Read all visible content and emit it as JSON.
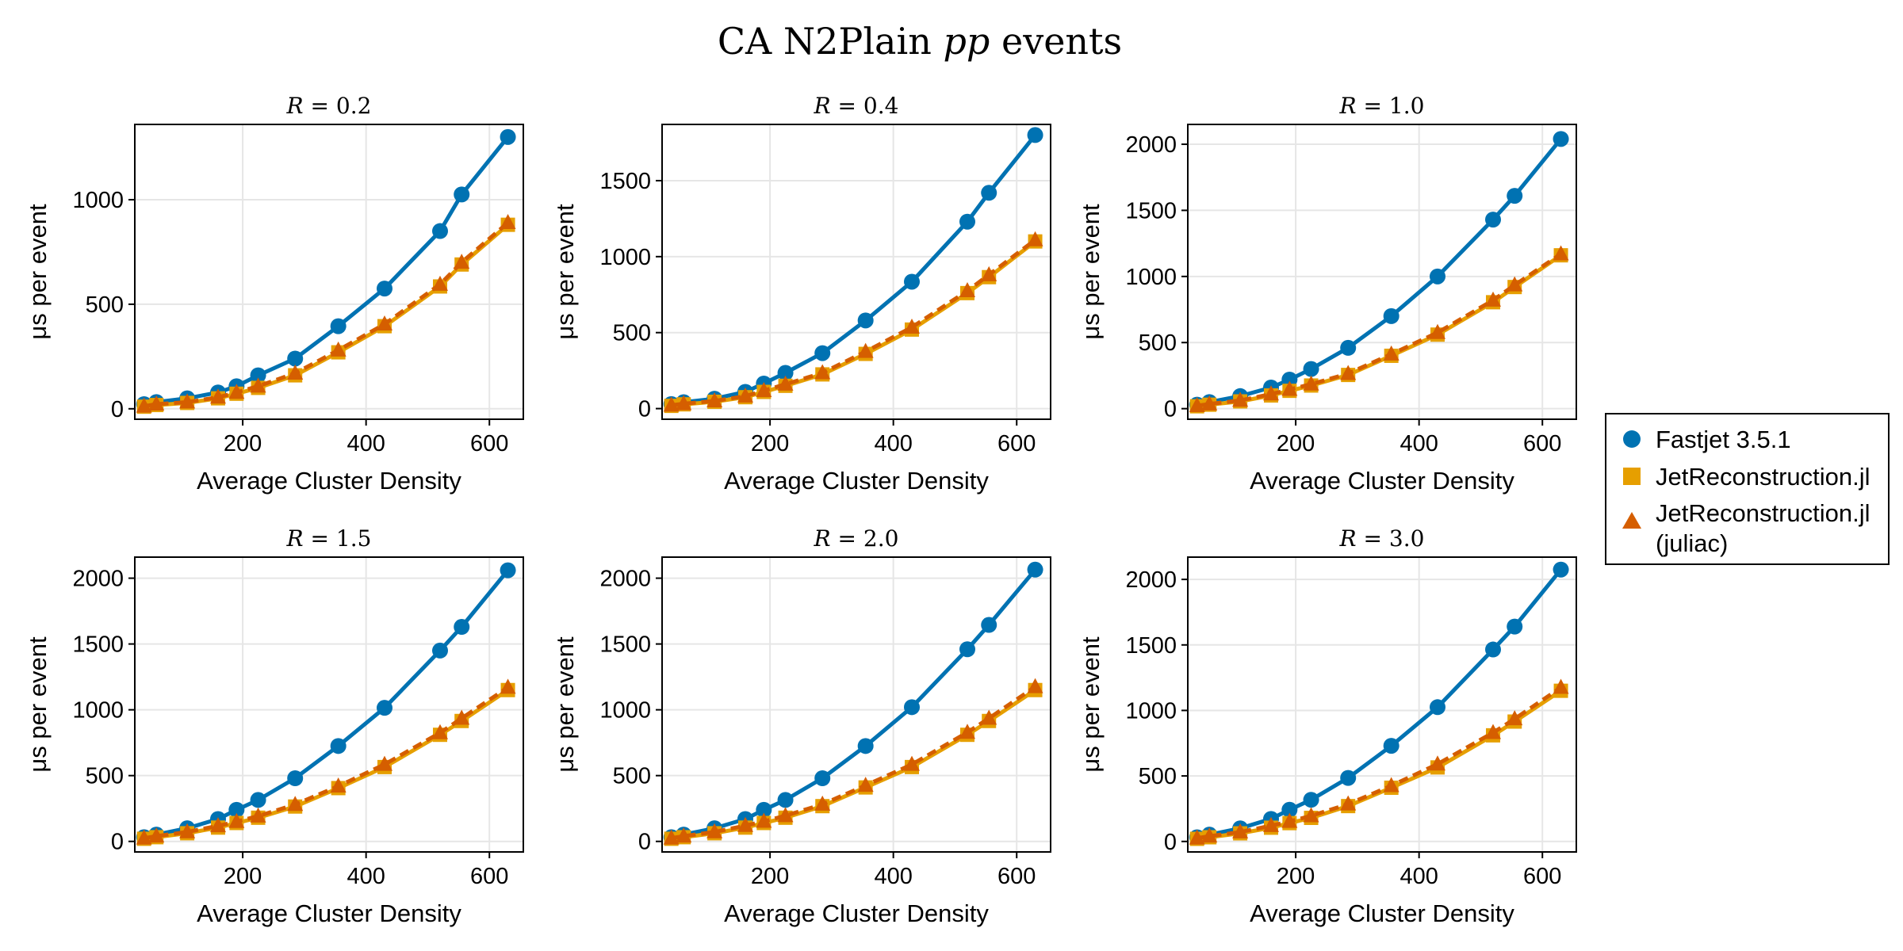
{
  "figure_title": "CA N2Plain pp events",
  "chart_data": [
    {
      "type": "line",
      "title": "R = 0.2",
      "xlabel": "Average Cluster Density",
      "ylabel": "μs per event",
      "xlim": [
        25,
        655
      ],
      "ylim": [
        -50,
        1360
      ],
      "xticks": [
        200,
        400,
        600
      ],
      "yticks": [
        0,
        500,
        1000
      ],
      "x": [
        40,
        60,
        110,
        160,
        190,
        225,
        285,
        355,
        430,
        520,
        555,
        630
      ],
      "series": [
        {
          "name": "Fastjet 3.5.1",
          "values": [
            22,
            32,
            50,
            78,
            108,
            160,
            240,
            395,
            575,
            850,
            1025,
            1300
          ]
        },
        {
          "name": "JetReconstruction.jl",
          "values": [
            10,
            18,
            28,
            50,
            72,
            100,
            160,
            270,
            395,
            585,
            690,
            880
          ]
        },
        {
          "name": "JetReconstruction.jl (juliac)",
          "values": [
            12,
            22,
            32,
            55,
            78,
            108,
            170,
            280,
            405,
            595,
            700,
            890
          ]
        }
      ]
    },
    {
      "type": "line",
      "title": "R = 0.4",
      "xlabel": "Average Cluster Density",
      "ylabel": "μs per event",
      "xlim": [
        25,
        655
      ],
      "ylim": [
        -70,
        1870
      ],
      "xticks": [
        200,
        400,
        600
      ],
      "yticks": [
        0,
        500,
        1000,
        1500
      ],
      "x": [
        40,
        60,
        110,
        160,
        190,
        225,
        285,
        355,
        430,
        520,
        555,
        630
      ],
      "series": [
        {
          "name": "Fastjet 3.5.1",
          "values": [
            30,
            42,
            65,
            110,
            165,
            235,
            365,
            580,
            835,
            1230,
            1420,
            1800
          ]
        },
        {
          "name": "JetReconstruction.jl",
          "values": [
            18,
            28,
            45,
            75,
            110,
            150,
            225,
            360,
            520,
            760,
            865,
            1100
          ]
        },
        {
          "name": "JetReconstruction.jl (juliac)",
          "values": [
            22,
            32,
            50,
            82,
            118,
            160,
            235,
            375,
            535,
            775,
            880,
            1110
          ]
        }
      ]
    },
    {
      "type": "line",
      "title": "R = 1.0",
      "xlabel": "Average Cluster Density",
      "ylabel": "μs per event",
      "xlim": [
        25,
        655
      ],
      "ylim": [
        -80,
        2150
      ],
      "xticks": [
        200,
        400,
        600
      ],
      "yticks": [
        0,
        500,
        1000,
        1500,
        2000
      ],
      "x": [
        40,
        60,
        110,
        160,
        190,
        225,
        285,
        355,
        430,
        520,
        555,
        630
      ],
      "series": [
        {
          "name": "Fastjet 3.5.1",
          "values": [
            30,
            50,
            95,
            160,
            220,
            300,
            460,
            700,
            1000,
            1430,
            1610,
            2040
          ]
        },
        {
          "name": "JetReconstruction.jl",
          "values": [
            18,
            30,
            55,
            100,
            135,
            175,
            255,
            400,
            560,
            805,
            920,
            1160
          ]
        },
        {
          "name": "JetReconstruction.jl (juliac)",
          "values": [
            22,
            35,
            62,
            110,
            145,
            185,
            265,
            412,
            575,
            820,
            935,
            1170
          ]
        }
      ]
    },
    {
      "type": "line",
      "title": "R = 1.5",
      "xlabel": "Average Cluster Density",
      "ylabel": "μs per event",
      "xlim": [
        25,
        655
      ],
      "ylim": [
        -80,
        2160
      ],
      "xticks": [
        200,
        400,
        600
      ],
      "yticks": [
        0,
        500,
        1000,
        1500,
        2000
      ],
      "x": [
        40,
        60,
        110,
        160,
        190,
        225,
        285,
        355,
        430,
        520,
        555,
        630
      ],
      "series": [
        {
          "name": "Fastjet 3.5.1",
          "values": [
            32,
            52,
            100,
            170,
            240,
            315,
            480,
            725,
            1015,
            1450,
            1630,
            2060
          ]
        },
        {
          "name": "JetReconstruction.jl",
          "values": [
            20,
            32,
            62,
            105,
            140,
            180,
            265,
            405,
            565,
            810,
            915,
            1150
          ]
        },
        {
          "name": "JetReconstruction.jl (juliac)",
          "values": [
            25,
            40,
            72,
            118,
            150,
            192,
            280,
            420,
            585,
            825,
            935,
            1170
          ]
        }
      ]
    },
    {
      "type": "line",
      "title": "R = 2.0",
      "xlabel": "Average Cluster Density",
      "ylabel": "μs per event",
      "xlim": [
        25,
        655
      ],
      "ylim": [
        -80,
        2160
      ],
      "xticks": [
        200,
        400,
        600
      ],
      "yticks": [
        0,
        500,
        1000,
        1500,
        2000
      ],
      "x": [
        40,
        60,
        110,
        160,
        190,
        225,
        285,
        355,
        430,
        520,
        555,
        630
      ],
      "series": [
        {
          "name": "Fastjet 3.5.1",
          "values": [
            32,
            52,
            100,
            170,
            240,
            315,
            480,
            725,
            1020,
            1460,
            1645,
            2065
          ]
        },
        {
          "name": "JetReconstruction.jl",
          "values": [
            20,
            32,
            62,
            105,
            140,
            180,
            268,
            410,
            565,
            810,
            915,
            1150
          ]
        },
        {
          "name": "JetReconstruction.jl (juliac)",
          "values": [
            25,
            40,
            72,
            120,
            152,
            195,
            282,
            425,
            585,
            828,
            935,
            1175
          ]
        }
      ]
    },
    {
      "type": "line",
      "title": "R = 3.0",
      "xlabel": "Average Cluster Density",
      "ylabel": "μs per event",
      "xlim": [
        25,
        655
      ],
      "ylim": [
        -80,
        2170
      ],
      "xticks": [
        200,
        400,
        600
      ],
      "yticks": [
        0,
        500,
        1000,
        1500,
        2000
      ],
      "x": [
        40,
        60,
        110,
        160,
        190,
        225,
        285,
        355,
        430,
        520,
        555,
        630
      ],
      "series": [
        {
          "name": "Fastjet 3.5.1",
          "values": [
            32,
            52,
            100,
            172,
            242,
            318,
            485,
            730,
            1025,
            1465,
            1640,
            2075
          ]
        },
        {
          "name": "JetReconstruction.jl",
          "values": [
            20,
            32,
            62,
            105,
            140,
            180,
            270,
            410,
            565,
            810,
            915,
            1150
          ]
        },
        {
          "name": "JetReconstruction.jl (juliac)",
          "values": [
            25,
            40,
            72,
            120,
            152,
            195,
            285,
            425,
            590,
            830,
            935,
            1175
          ]
        }
      ]
    }
  ],
  "legend": {
    "placement": "right",
    "entries": [
      "Fastjet 3.5.1",
      "JetReconstruction.jl",
      "JetReconstruction.jl (juliac)"
    ],
    "line1": [
      "Fastjet 3.5.1"
    ],
    "line2": [
      "JetReconstruction.jl"
    ],
    "line3": [
      "JetReconstruction.jl",
      "(juliac)"
    ]
  },
  "colors": {
    "fastjet": "#0072b2",
    "jetreco": "#e69f00",
    "juliac": "#d55e00"
  }
}
